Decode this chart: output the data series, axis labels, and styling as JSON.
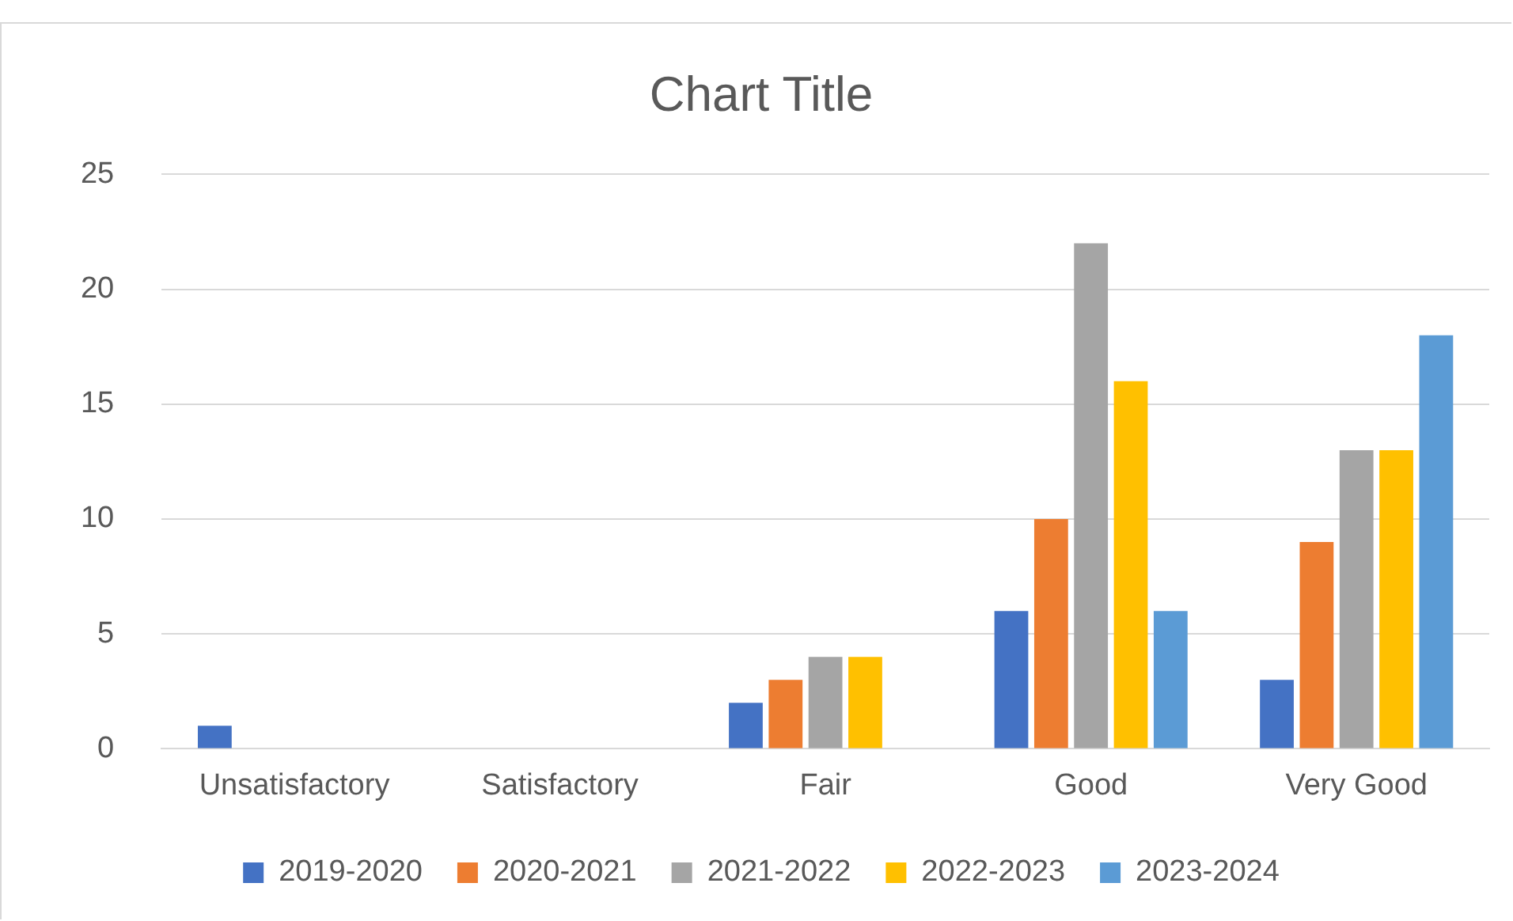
{
  "chart_data": {
    "type": "bar",
    "title": "Chart Title",
    "categories": [
      "Unsatisfactory",
      "Satisfactory",
      "Fair",
      "Good",
      "Very Good"
    ],
    "series": [
      {
        "name": "2019-2020",
        "color": "#4472c4",
        "values": [
          1,
          0,
          2,
          6,
          3
        ]
      },
      {
        "name": "2020-2021",
        "color": "#ed7d31",
        "values": [
          0,
          0,
          3,
          10,
          9
        ]
      },
      {
        "name": "2021-2022",
        "color": "#a5a5a5",
        "values": [
          0,
          0,
          4,
          22,
          13
        ]
      },
      {
        "name": "2022-2023",
        "color": "#ffc000",
        "values": [
          0,
          0,
          4,
          16,
          13
        ]
      },
      {
        "name": "2023-2024",
        "color": "#5b9bd5",
        "values": [
          0,
          0,
          0,
          6,
          18
        ]
      }
    ],
    "ylim": [
      0,
      25
    ],
    "yticks": [
      0,
      5,
      10,
      15,
      20,
      25
    ],
    "grid": "y",
    "legend": "bottom"
  }
}
